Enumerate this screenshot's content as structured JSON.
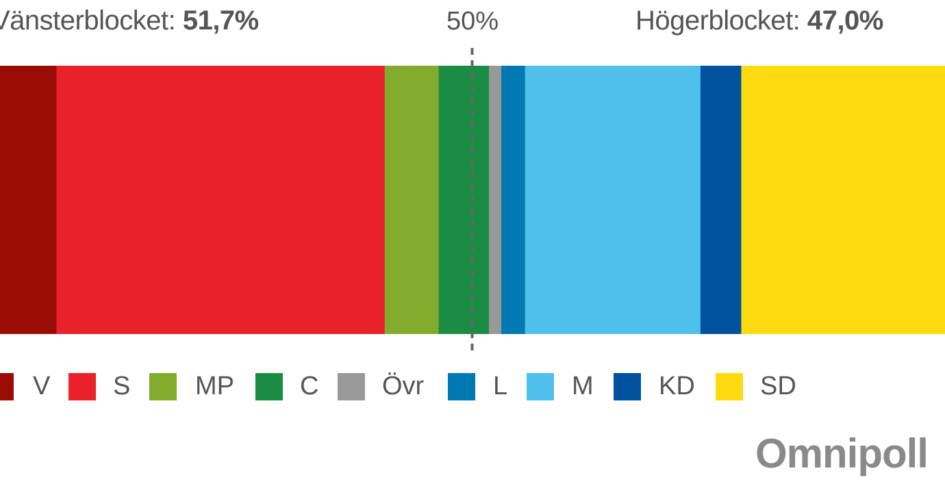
{
  "chart_data": {
    "type": "bar",
    "orientation": "horizontal-stacked",
    "categories": [
      "V",
      "S",
      "MP",
      "C",
      "Övr",
      "L",
      "M",
      "KD",
      "SD"
    ],
    "values": [
      6.1,
      34.6,
      5.7,
      5.3,
      1.3,
      2.5,
      18.5,
      4.3,
      21.7
    ],
    "colors": [
      "#9b0c07",
      "#e8212a",
      "#83ab2e",
      "#1b8c44",
      "#999999",
      "#0079b2",
      "#4fbfeb",
      "#00529f",
      "#fddb0f"
    ],
    "reference_line": {
      "value": 50,
      "label": "50%",
      "style": "dashed"
    },
    "blocs": {
      "left": {
        "label": "Vänsterblocket:",
        "value": "51,7%"
      },
      "right": {
        "label": "Högerblocket:",
        "value": "47,0%"
      }
    },
    "legend_placement": "bottom",
    "grid": false
  },
  "logo": "Omnipoll"
}
